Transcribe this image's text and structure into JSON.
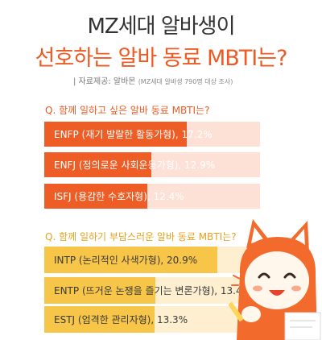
{
  "header": {
    "title_line1": "MZ세대 알바생이",
    "title_line2": "선호하는 알바 동료 MBTI는?",
    "source": "| 자료제공: 알바몬",
    "source_note": "(MZ세대 알바생 790명 대상 조사)"
  },
  "colors": {
    "orange": "#ef5d26",
    "orange_track": "#fde0d6",
    "yellow": "#f7c548",
    "yellow_track": "#fdefcf"
  },
  "chart_data": [
    {
      "type": "bar",
      "title": "Q. 함께 일하고 싶은 알바 동료 MBTI는?",
      "unit": "%",
      "xlim": [
        0,
        26
      ],
      "categories": [
        "ENFP (재기 발랄한 활동가형)",
        "ENFJ (정의로운 사회운동가형)",
        "ISFJ (용감한 수호자형)"
      ],
      "values": [
        17.2,
        12.9,
        12.4
      ],
      "labels": [
        "ENFP (재기 발랄한 활동가형), 17.2%",
        "ENFJ (정의로운 사회운동가형), 12.9%",
        "ISFJ (용감한 수호자형), 12.4%"
      ]
    },
    {
      "type": "bar",
      "title": "Q. 함께 일하기 부담스러운 알바 동료 MBTI는?",
      "unit": "%",
      "xlim": [
        0,
        26
      ],
      "categories": [
        "INTP (논리적인 사색가형)",
        "ENTP (뜨거운 논쟁을 즐기는 변론가형)",
        "ESTJ (엄격한 관리자형)"
      ],
      "values": [
        20.9,
        13.4,
        13.3
      ],
      "labels": [
        "INTP (논리적인 사색가형), 20.9%",
        "ENTP (뜨거운 논쟁을 즐기는 변론가형), 13.4%",
        "ESTJ (엄격한 관리자형), 13.3%"
      ]
    }
  ]
}
